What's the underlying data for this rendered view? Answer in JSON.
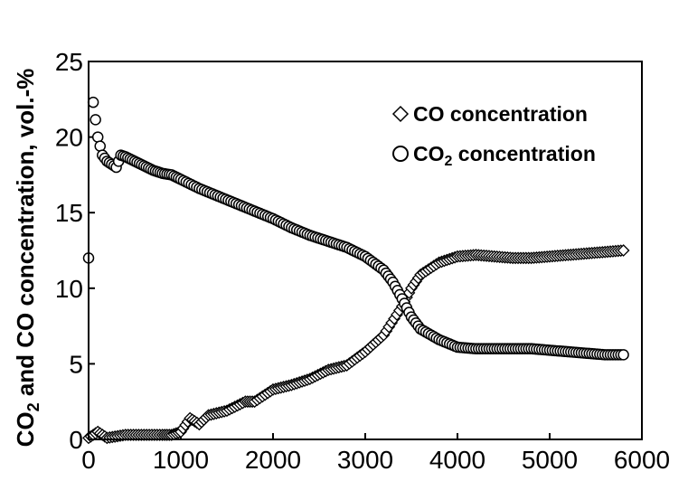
{
  "chart_data": {
    "type": "scatter",
    "title": "",
    "xlabel": "",
    "ylabel": "CO₂ and CO concentration, vol.-%",
    "xlim": [
      0,
      6000
    ],
    "ylim": [
      0,
      25
    ],
    "xticks": [
      "0",
      "1000",
      "2000",
      "3000",
      "4000",
      "5000",
      "6000"
    ],
    "yticks": [
      "0",
      "5",
      "10",
      "15",
      "20",
      "25"
    ],
    "grid": false,
    "legend_position": "top-right",
    "series": [
      {
        "name": "CO concentration",
        "marker": "diamond",
        "points": [
          [
            0,
            0.1
          ],
          [
            100,
            0.5
          ],
          [
            200,
            0.1
          ],
          [
            400,
            0.3
          ],
          [
            600,
            0.3
          ],
          [
            800,
            0.3
          ],
          [
            900,
            0.3
          ],
          [
            1000,
            0.5
          ],
          [
            1100,
            1.4
          ],
          [
            1200,
            1.0
          ],
          [
            1300,
            1.6
          ],
          [
            1500,
            1.9
          ],
          [
            1700,
            2.5
          ],
          [
            1800,
            2.5
          ],
          [
            2000,
            3.3
          ],
          [
            2200,
            3.6
          ],
          [
            2400,
            4.0
          ],
          [
            2600,
            4.6
          ],
          [
            2800,
            4.9
          ],
          [
            3000,
            5.8
          ],
          [
            3200,
            6.9
          ],
          [
            3400,
            8.8
          ],
          [
            3500,
            10.0
          ],
          [
            3600,
            10.9
          ],
          [
            3800,
            11.7
          ],
          [
            4000,
            12.1
          ],
          [
            4200,
            12.2
          ],
          [
            4400,
            12.1
          ],
          [
            4600,
            12.0
          ],
          [
            4800,
            12.0
          ],
          [
            5000,
            12.1
          ],
          [
            5200,
            12.2
          ],
          [
            5400,
            12.3
          ],
          [
            5600,
            12.4
          ],
          [
            5800,
            12.5
          ]
        ]
      },
      {
        "name": "CO₂ concentration",
        "marker": "circle",
        "points": [
          [
            0,
            12.0
          ],
          [
            50,
            22.3
          ],
          [
            100,
            20.0
          ],
          [
            150,
            18.8
          ],
          [
            200,
            18.4
          ],
          [
            300,
            18.0
          ],
          [
            350,
            18.8
          ],
          [
            400,
            18.7
          ],
          [
            500,
            18.4
          ],
          [
            600,
            18.1
          ],
          [
            700,
            17.8
          ],
          [
            800,
            17.6
          ],
          [
            900,
            17.5
          ],
          [
            1000,
            17.2
          ],
          [
            1200,
            16.6
          ],
          [
            1400,
            16.1
          ],
          [
            1600,
            15.6
          ],
          [
            1800,
            15.1
          ],
          [
            2000,
            14.6
          ],
          [
            2200,
            14.0
          ],
          [
            2400,
            13.5
          ],
          [
            2600,
            13.1
          ],
          [
            2800,
            12.7
          ],
          [
            3000,
            12.1
          ],
          [
            3200,
            11.2
          ],
          [
            3300,
            10.4
          ],
          [
            3400,
            9.3
          ],
          [
            3500,
            8.1
          ],
          [
            3600,
            7.3
          ],
          [
            3800,
            6.6
          ],
          [
            4000,
            6.1
          ],
          [
            4200,
            6.0
          ],
          [
            4400,
            6.0
          ],
          [
            4600,
            6.0
          ],
          [
            4800,
            6.0
          ],
          [
            5000,
            5.9
          ],
          [
            5200,
            5.8
          ],
          [
            5400,
            5.7
          ],
          [
            5600,
            5.6
          ],
          [
            5800,
            5.6
          ]
        ]
      }
    ]
  },
  "legend": {
    "co_label": "CO concentration",
    "co2_label_prefix": "CO",
    "co2_label_sub": "2",
    "co2_label_suffix": " concentration"
  },
  "axis": {
    "ylabel_part1": "CO",
    "ylabel_sub": "2",
    "ylabel_part2": " and CO concentration, vol.-%"
  }
}
